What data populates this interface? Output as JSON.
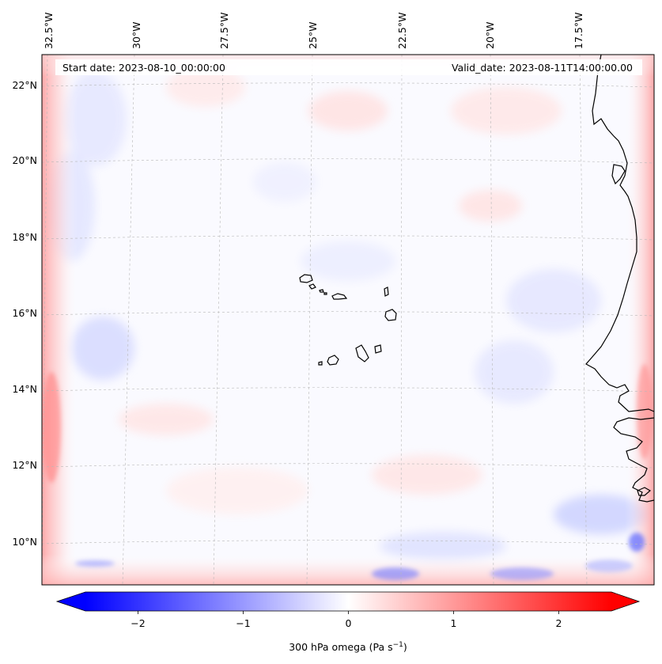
{
  "map": {
    "start_date_label": "Start date: 2023-08-10_00:00:00",
    "valid_date_label": "Valid_date: 2023-08-11T14:00:00.00",
    "lon_labels": [
      "32.5°W",
      "30°W",
      "27.5°W",
      "25°W",
      "22.5°W",
      "20°W",
      "17.5°W"
    ],
    "lat_labels": [
      "22°N",
      "20°N",
      "18°N",
      "16°N",
      "14°N",
      "12°N",
      "10°N"
    ]
  },
  "colorbar": {
    "label_main": "300 hPa omega (Pa s",
    "label_exp": "−1",
    "label_end": ")",
    "ticks": [
      "−2",
      "−1",
      "0",
      "1",
      "2"
    ],
    "tick_values": [
      -2,
      -1,
      0,
      1,
      2
    ],
    "range": [
      -2.5,
      2.5
    ],
    "colormap": "bwr",
    "low_color": "#0000ff",
    "mid_color": "#ffffff",
    "high_color": "#ff0000"
  }
}
